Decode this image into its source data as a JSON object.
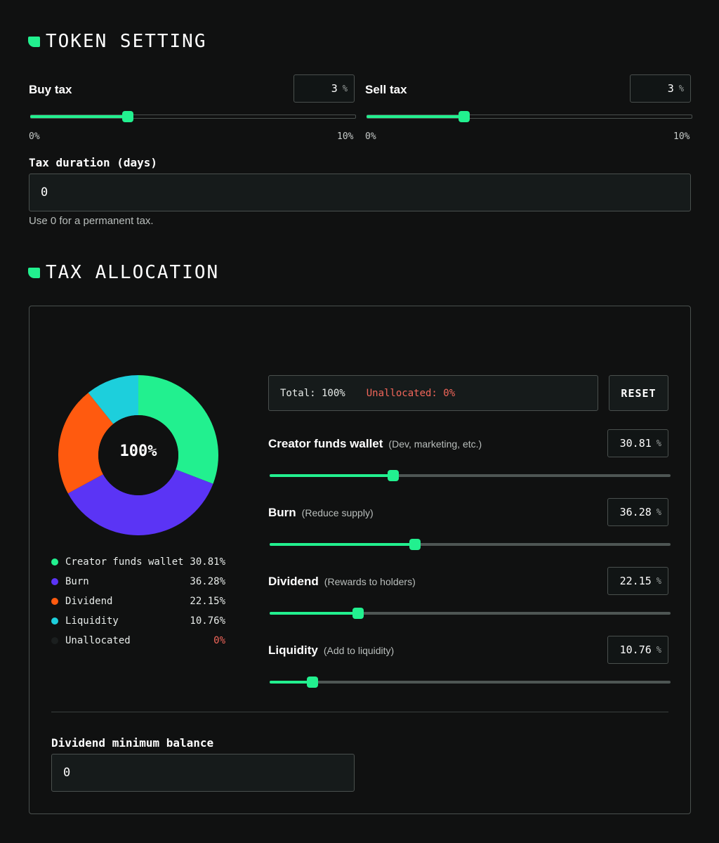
{
  "token_setting": {
    "title": "TOKEN SETTING",
    "buy_tax": {
      "label": "Buy tax",
      "value": "3",
      "unit": "%",
      "min_label": "0%",
      "max_label": "10%",
      "level": 0.3
    },
    "sell_tax": {
      "label": "Sell tax",
      "value": "3",
      "unit": "%",
      "min_label": "0%",
      "max_label": "10%",
      "level": 0.3
    },
    "tax_duration": {
      "label": "Tax duration (days)",
      "value": "0",
      "hint": "Use 0 for a permanent tax."
    }
  },
  "tax_allocation": {
    "title": "TAX ALLOCATION",
    "center_label": "100%",
    "summary": {
      "total": "Total: 100%",
      "unallocated": "Unallocated: 0%"
    },
    "reset_label": "RESET",
    "items": [
      {
        "name": "Creator funds wallet",
        "legend_name": "Creator funds wallet",
        "desc": "(Dev, marketing, etc.)",
        "value": "30.81",
        "legend_value": "30.81%",
        "color": "#22f08f"
      },
      {
        "name": "Burn",
        "legend_name": "Burn",
        "desc": "(Reduce supply)",
        "value": "36.28",
        "legend_value": "36.28%",
        "color": "#5b34f5"
      },
      {
        "name": "Dividend",
        "legend_name": "Dividend",
        "desc": "(Rewards to holders)",
        "value": "22.15",
        "legend_value": "22.15%",
        "color": "#ff5a0f"
      },
      {
        "name": "Liquidity",
        "legend_name": "Liquidity",
        "desc": "(Add to liquidity)",
        "value": "10.76",
        "legend_value": "10.76%",
        "color": "#1dcfdc"
      }
    ],
    "unallocated_row": {
      "name": "Unallocated",
      "value": "0%",
      "color": "#1b1f1f",
      "value_color": "#f2665a"
    },
    "unit": "%",
    "dividend_min_balance": {
      "label": "Dividend minimum balance",
      "value": "0"
    }
  },
  "chart_data": {
    "type": "pie",
    "categories": [
      "Creator funds wallet",
      "Burn",
      "Dividend",
      "Liquidity",
      "Unallocated"
    ],
    "values": [
      30.81,
      36.28,
      22.15,
      10.76,
      0
    ],
    "colors": [
      "#22f08f",
      "#5b34f5",
      "#ff5a0f",
      "#1dcfdc",
      "#1b1f1f"
    ],
    "title": "",
    "center_text": "100%"
  }
}
